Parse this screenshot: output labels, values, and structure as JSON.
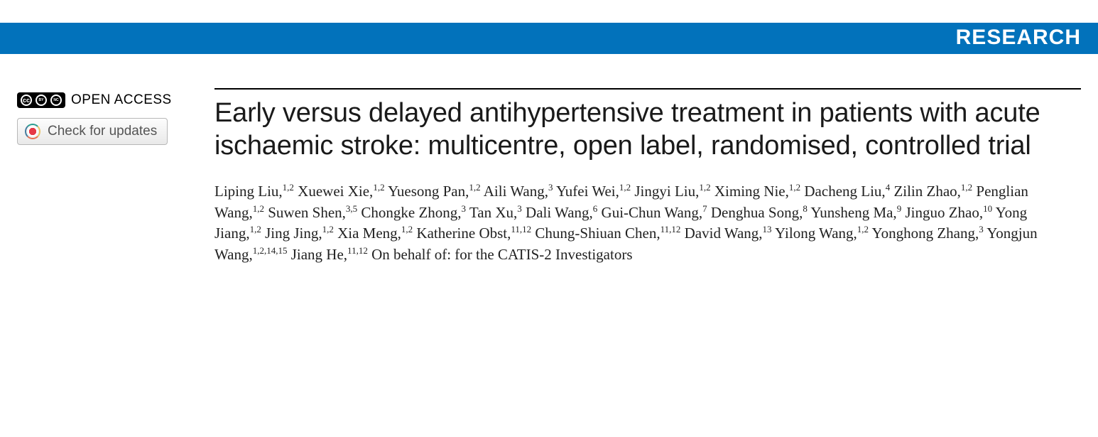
{
  "banner": {
    "label": "RESEARCH",
    "bg_color": "#0272bb",
    "text_color": "#ffffff"
  },
  "sidebar": {
    "open_access_label": "OPEN ACCESS",
    "cc_glyphs": [
      "cc",
      "BY",
      "NC"
    ],
    "check_updates_label": "Check for updates"
  },
  "article": {
    "title": "Early versus delayed antihypertensive treatment in patients with acute ischaemic stroke: multicentre, open label, randomised, controlled trial",
    "authors": [
      {
        "name": "Liping Liu",
        "aff": "1,2"
      },
      {
        "name": "Xuewei Xie",
        "aff": "1,2"
      },
      {
        "name": "Yuesong Pan",
        "aff": "1,2"
      },
      {
        "name": "Aili Wang",
        "aff": "3"
      },
      {
        "name": "Yufei Wei",
        "aff": "1,2"
      },
      {
        "name": "Jingyi Liu",
        "aff": "1,2"
      },
      {
        "name": "Ximing Nie",
        "aff": "1,2"
      },
      {
        "name": "Dacheng Liu",
        "aff": "4"
      },
      {
        "name": "Zilin Zhao",
        "aff": "1,2"
      },
      {
        "name": "Penglian Wang",
        "aff": "1,2"
      },
      {
        "name": "Suwen Shen",
        "aff": "3,5"
      },
      {
        "name": "Chongke Zhong",
        "aff": "3"
      },
      {
        "name": "Tan Xu",
        "aff": "3"
      },
      {
        "name": "Dali Wang",
        "aff": "6"
      },
      {
        "name": "Gui-Chun Wang",
        "aff": "7"
      },
      {
        "name": "Denghua Song",
        "aff": "8"
      },
      {
        "name": "Yunsheng Ma",
        "aff": "9"
      },
      {
        "name": "Jinguo Zhao",
        "aff": "10"
      },
      {
        "name": "Yong Jiang",
        "aff": "1,2"
      },
      {
        "name": "Jing Jing",
        "aff": "1,2"
      },
      {
        "name": "Xia Meng",
        "aff": "1,2"
      },
      {
        "name": "Katherine Obst",
        "aff": "11,12"
      },
      {
        "name": "Chung-Shiuan Chen",
        "aff": "11,12"
      },
      {
        "name": "David Wang",
        "aff": "13"
      },
      {
        "name": "Yilong Wang",
        "aff": "1,2"
      },
      {
        "name": "Yonghong Zhang",
        "aff": "3"
      },
      {
        "name": "Yongjun Wang",
        "aff": "1,2,14,15"
      },
      {
        "name": "Jiang He",
        "aff": "11,12"
      }
    ],
    "group_credit": "On behalf of: for the CATIS-2 Investigators"
  },
  "typography": {
    "title_fontsize": 38,
    "title_color": "#1a1a1a",
    "authors_fontsize": 21,
    "authors_color": "#222222",
    "banner_fontsize": 30
  }
}
